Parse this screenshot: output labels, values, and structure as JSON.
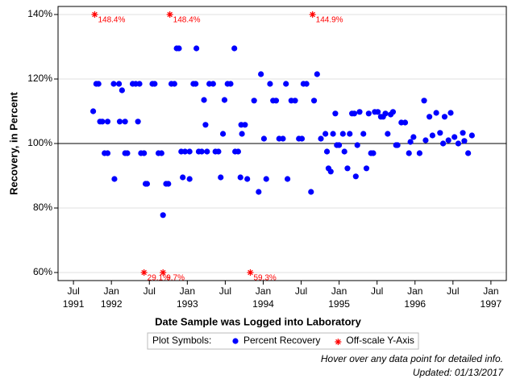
{
  "chart_data": {
    "type": "scatter",
    "xlabel": "Date Sample was Logged into Laboratory",
    "ylabel": "Recovery, in Percent",
    "xlim": [
      1991.297,
      1997.203
    ],
    "ylim": [
      57.5,
      142.5
    ],
    "xticks": [
      {
        "value": 1991.5,
        "label": "Jul 1991"
      },
      {
        "value": 1992,
        "label": "Jan 1992"
      },
      {
        "value": 1992.5,
        "label": "Jul"
      },
      {
        "value": 1993,
        "label": "Jan 1993"
      },
      {
        "value": 1993.5,
        "label": "Jul"
      },
      {
        "value": 1994,
        "label": "Jan 1994"
      },
      {
        "value": 1994.5,
        "label": "Jul"
      },
      {
        "value": 1995,
        "label": "Jan 1995"
      },
      {
        "value": 1995.5,
        "label": "Jul"
      },
      {
        "value": 1996,
        "label": "Jan 1996"
      },
      {
        "value": 1996.5,
        "label": "Jul"
      },
      {
        "value": 1997,
        "label": "Jan 1997"
      }
    ],
    "yticks": [
      {
        "value": 60,
        "label": "60%"
      },
      {
        "value": 80,
        "label": "80%"
      },
      {
        "value": 100,
        "label": "100%"
      },
      {
        "value": 120,
        "label": "120%"
      },
      {
        "value": 140,
        "label": "140%"
      }
    ],
    "grid": true,
    "reference_line": 100,
    "legend": {
      "title": "Plot Symbols:",
      "position": "bottom"
    },
    "series": [
      {
        "name": "Percent Recovery",
        "color": "#0000ff",
        "marker": "circle",
        "x": [
          1991.76,
          1991.8,
          1991.83,
          1991.85,
          1991.88,
          1991.91,
          1991.95,
          1991.95,
          1992.03,
          1992.04,
          1992.1,
          1992.11,
          1992.14,
          1992.18,
          1992.18,
          1992.21,
          1992.28,
          1992.32,
          1992.35,
          1992.37,
          1992.39,
          1992.43,
          1992.45,
          1992.47,
          1992.54,
          1992.57,
          1992.62,
          1992.66,
          1992.68,
          1992.72,
          1992.75,
          1992.79,
          1992.83,
          1992.86,
          1992.89,
          1992.92,
          1992.94,
          1992.97,
          1993.03,
          1993.03,
          1993.08,
          1993.11,
          1993.12,
          1993.15,
          1993.19,
          1993.22,
          1993.24,
          1993.26,
          1993.29,
          1993.34,
          1993.37,
          1993.41,
          1993.44,
          1993.47,
          1993.49,
          1993.53,
          1993.57,
          1993.62,
          1993.63,
          1993.67,
          1993.7,
          1993.71,
          1993.72,
          1993.76,
          1993.79,
          1993.88,
          1993.94,
          1993.97,
          1994.01,
          1994.04,
          1994.09,
          1994.13,
          1994.17,
          1994.21,
          1994.26,
          1994.3,
          1994.32,
          1994.37,
          1994.42,
          1994.47,
          1994.51,
          1994.53,
          1994.57,
          1994.63,
          1994.67,
          1994.71,
          1994.76,
          1994.82,
          1994.84,
          1994.86,
          1994.89,
          1994.92,
          1994.95,
          1994.97,
          1995,
          1995.05,
          1995.07,
          1995.11,
          1995.14,
          1995.17,
          1995.2,
          1995.22,
          1995.24,
          1995.27,
          1995.32,
          1995.36,
          1995.39,
          1995.42,
          1995.45,
          1995.47,
          1995.51,
          1995.55,
          1995.58,
          1995.61,
          1995.64,
          1995.68,
          1995.71,
          1995.75,
          1995.77,
          1995.82,
          1995.87,
          1995.92,
          1995.94,
          1995.98,
          1996.06,
          1996.12,
          1996.14,
          1996.19,
          1996.23,
          1996.28,
          1996.33,
          1996.37,
          1996.39,
          1996.44,
          1996.47,
          1996.52,
          1996.57,
          1996.63,
          1996.65,
          1996.7,
          1996.75
        ],
        "values": [
          110,
          118.5,
          118.5,
          106.8,
          106.8,
          97,
          97,
          106.8,
          118.5,
          89,
          118.5,
          106.8,
          116.5,
          106.8,
          97,
          97,
          118.5,
          118.5,
          106.8,
          118.5,
          97,
          97,
          87.5,
          87.5,
          118.5,
          118.5,
          97,
          97,
          77.8,
          87.5,
          87.5,
          118.5,
          118.5,
          129.5,
          129.5,
          97.5,
          89.5,
          97.5,
          97.5,
          89,
          118.5,
          118.5,
          129.5,
          97.5,
          97.5,
          113.5,
          105.8,
          97.5,
          118.5,
          118.5,
          97.5,
          97.5,
          89.5,
          103,
          113.5,
          118.5,
          118.5,
          129.5,
          97.5,
          97.5,
          89.5,
          105.8,
          103,
          105.8,
          89,
          113.3,
          85,
          121.5,
          101.5,
          89,
          118.5,
          113.3,
          113.3,
          101.5,
          101.5,
          118.5,
          89,
          113.3,
          113.3,
          101.5,
          101.5,
          118.5,
          118.5,
          85,
          113.3,
          121.5,
          101.5,
          103,
          97.5,
          92.3,
          91.3,
          103,
          109.3,
          99.5,
          99.5,
          103,
          97.5,
          92.3,
          103,
          109.3,
          109.3,
          89.8,
          99.5,
          109.8,
          103,
          92.3,
          109.3,
          97,
          97,
          109.8,
          109.8,
          108.3,
          108.3,
          109.3,
          103,
          109,
          109.8,
          99.5,
          99.5,
          106.5,
          106.5,
          97,
          100.5,
          102,
          97,
          113.3,
          101,
          108.3,
          102.5,
          109.5,
          103.3,
          100,
          108.3,
          101,
          109.5,
          102,
          100,
          103.3,
          100.8,
          97,
          102.5
        ]
      },
      {
        "name": "Off-scale Y-Axis",
        "color": "#ff0000",
        "marker": "asterisk",
        "x": [
          1991.78,
          1992.77,
          1994.65,
          1992.43,
          1992.68,
          1993.83
        ],
        "values": [
          140,
          140,
          140,
          60,
          60,
          60
        ],
        "annotations": [
          "148.4%",
          "148.4%",
          "144.9%",
          "29.1%",
          "9.7%",
          "59.3%"
        ]
      }
    ],
    "notes": [
      "Hover over any data point for detailed info.",
      "Updated: 01/13/2017"
    ]
  }
}
